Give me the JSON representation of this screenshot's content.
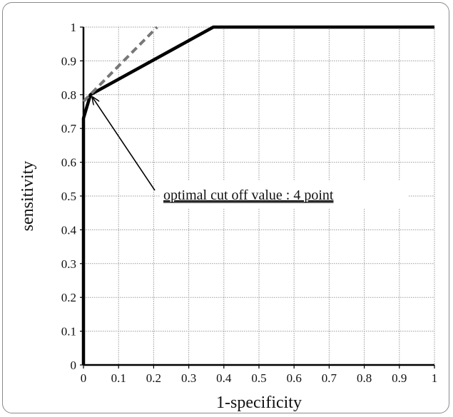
{
  "chart_data": {
    "type": "line",
    "title": "",
    "xlabel": "1-specificity",
    "ylabel": "sensitivity",
    "xlim": [
      0,
      1
    ],
    "ylim": [
      0,
      1
    ],
    "x_ticks": [
      "0",
      "0.1",
      "0.2",
      "0.3",
      "0.4",
      "0.5",
      "0.6",
      "0.7",
      "0.8",
      "0.9",
      "1"
    ],
    "y_ticks": [
      "0",
      "0.1",
      "0.2",
      "0.3",
      "0.4",
      "0.5",
      "0.6",
      "0.7",
      "0.8",
      "0.9",
      "1"
    ],
    "grid": true,
    "series": [
      {
        "style": "solid",
        "color": "#000000",
        "points": [
          [
            0,
            0
          ],
          [
            0,
            0.73
          ],
          [
            0.02,
            0.8
          ],
          [
            0.37,
            1.0
          ],
          [
            1.0,
            1.0
          ]
        ]
      },
      {
        "style": "dashed",
        "color": "#777777",
        "points": [
          [
            0,
            0.78
          ],
          [
            0.21,
            1.0
          ]
        ]
      }
    ],
    "annotations": [
      {
        "text": "optimal cut off value : 4 point",
        "underline": true,
        "target": [
          0.02,
          0.8
        ]
      }
    ]
  }
}
